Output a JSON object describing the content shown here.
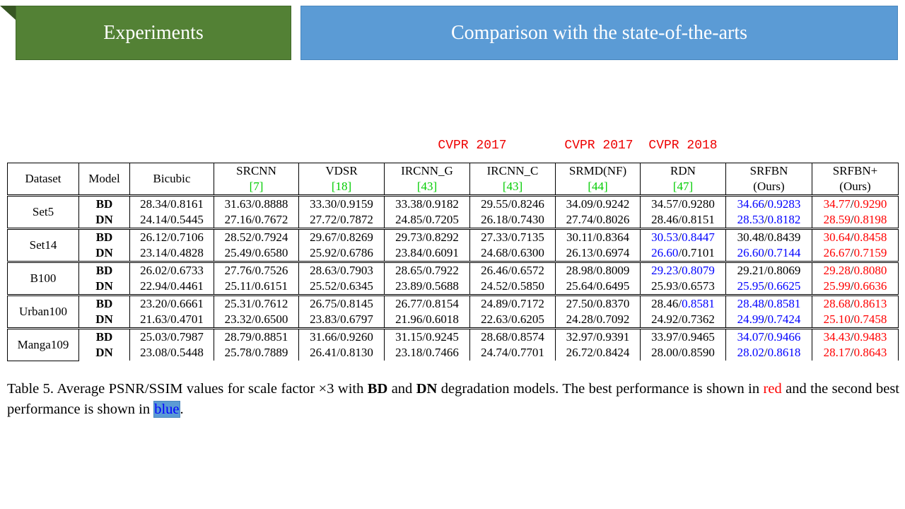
{
  "header": {
    "section": "Experiments",
    "title": "Comparison with the state-of-the-arts"
  },
  "annotations": [
    "CVPR 2017",
    "CVPR 2017",
    "CVPR 2018"
  ],
  "table": {
    "columns": [
      {
        "name": "Dataset"
      },
      {
        "name": "Model"
      },
      {
        "name": "Bicubic"
      },
      {
        "name": "SRCNN",
        "ref": "[7]"
      },
      {
        "name": "VDSR",
        "ref": "[18]"
      },
      {
        "name": "IRCNN_G",
        "ref": "[43]"
      },
      {
        "name": "IRCNN_C",
        "ref": "[43]"
      },
      {
        "name": "SRMD(NF)",
        "ref": "[44]"
      },
      {
        "name": "RDN",
        "ref": "[47]"
      },
      {
        "name": "SRFBN",
        "note": "(Ours)"
      },
      {
        "name": "SRFBN+",
        "note": "(Ours)"
      }
    ],
    "separator": "/",
    "groups": [
      {
        "dataset": "Set5",
        "rows": [
          {
            "model": "BD",
            "cells": [
              {
                "p": "28.34",
                "s": "0.8161"
              },
              {
                "p": "31.63",
                "s": "0.8888"
              },
              {
                "p": "33.30",
                "s": "0.9159"
              },
              {
                "p": "33.38",
                "s": "0.9182"
              },
              {
                "p": "29.55",
                "s": "0.8246"
              },
              {
                "p": "34.09",
                "s": "0.9242"
              },
              {
                "p": "34.57",
                "s": "0.9280"
              },
              {
                "p": "34.66",
                "s": "0.9283",
                "pc": "blue",
                "sc": "blue"
              },
              {
                "p": "34.77",
                "s": "0.9290",
                "pc": "red",
                "sc": "red"
              }
            ]
          },
          {
            "model": "DN",
            "cells": [
              {
                "p": "24.14",
                "s": "0.5445"
              },
              {
                "p": "27.16",
                "s": "0.7672"
              },
              {
                "p": "27.72",
                "s": "0.7872"
              },
              {
                "p": "24.85",
                "s": "0.7205"
              },
              {
                "p": "26.18",
                "s": "0.7430"
              },
              {
                "p": "27.74",
                "s": "0.8026"
              },
              {
                "p": "28.46",
                "s": "0.8151"
              },
              {
                "p": "28.53",
                "s": "0.8182",
                "pc": "blue",
                "sc": "blue"
              },
              {
                "p": "28.59",
                "s": "0.8198",
                "pc": "red",
                "sc": "red"
              }
            ]
          }
        ]
      },
      {
        "dataset": "Set14",
        "rows": [
          {
            "model": "BD",
            "cells": [
              {
                "p": "26.12",
                "s": "0.7106"
              },
              {
                "p": "28.52",
                "s": "0.7924"
              },
              {
                "p": "29.67",
                "s": "0.8269"
              },
              {
                "p": "29.73",
                "s": "0.8292"
              },
              {
                "p": "27.33",
                "s": "0.7135"
              },
              {
                "p": "30.11",
                "s": "0.8364"
              },
              {
                "p": "30.53",
                "s": "0.8447",
                "pc": "blue",
                "sc": "blue"
              },
              {
                "p": "30.48",
                "s": "0.8439"
              },
              {
                "p": "30.64",
                "s": "0.8458",
                "pc": "red",
                "sc": "red"
              }
            ]
          },
          {
            "model": "DN",
            "cells": [
              {
                "p": "23.14",
                "s": "0.4828"
              },
              {
                "p": "25.49",
                "s": "0.6580"
              },
              {
                "p": "25.92",
                "s": "0.6786"
              },
              {
                "p": "23.84",
                "s": "0.6091"
              },
              {
                "p": "24.68",
                "s": "0.6300"
              },
              {
                "p": "26.13",
                "s": "0.6974"
              },
              {
                "p": "26.60",
                "s": "0.7101",
                "pc": "blue"
              },
              {
                "p": "26.60",
                "s": "0.7144",
                "pc": "blue",
                "sc": "blue"
              },
              {
                "p": "26.67",
                "s": "0.7159",
                "pc": "red",
                "sc": "red"
              }
            ]
          }
        ]
      },
      {
        "dataset": "B100",
        "rows": [
          {
            "model": "BD",
            "cells": [
              {
                "p": "26.02",
                "s": "0.6733"
              },
              {
                "p": "27.76",
                "s": "0.7526"
              },
              {
                "p": "28.63",
                "s": "0.7903"
              },
              {
                "p": "28.65",
                "s": "0.7922"
              },
              {
                "p": "26.46",
                "s": "0.6572"
              },
              {
                "p": "28.98",
                "s": "0.8009"
              },
              {
                "p": "29.23",
                "s": "0.8079",
                "pc": "blue",
                "sc": "blue"
              },
              {
                "p": "29.21",
                "s": "0.8069"
              },
              {
                "p": "29.28",
                "s": "0.8080",
                "pc": "red",
                "sc": "red"
              }
            ]
          },
          {
            "model": "DN",
            "cells": [
              {
                "p": "22.94",
                "s": "0.4461"
              },
              {
                "p": "25.11",
                "s": "0.6151"
              },
              {
                "p": "25.52",
                "s": "0.6345"
              },
              {
                "p": "23.89",
                "s": "0.5688"
              },
              {
                "p": "24.52",
                "s": "0.5850"
              },
              {
                "p": "25.64",
                "s": "0.6495"
              },
              {
                "p": "25.93",
                "s": "0.6573"
              },
              {
                "p": "25.95",
                "s": "0.6625",
                "pc": "blue",
                "sc": "blue"
              },
              {
                "p": "25.99",
                "s": "0.6636",
                "pc": "red",
                "sc": "red"
              }
            ]
          }
        ]
      },
      {
        "dataset": "Urban100",
        "rows": [
          {
            "model": "BD",
            "cells": [
              {
                "p": "23.20",
                "s": "0.6661"
              },
              {
                "p": "25.31",
                "s": "0.7612"
              },
              {
                "p": "26.75",
                "s": "0.8145"
              },
              {
                "p": "26.77",
                "s": "0.8154"
              },
              {
                "p": "24.89",
                "s": "0.7172"
              },
              {
                "p": "27.50",
                "s": "0.8370"
              },
              {
                "p": "28.46",
                "s": "0.8581",
                "sc": "blue"
              },
              {
                "p": "28.48",
                "s": "0.8581",
                "pc": "blue",
                "sc": "blue"
              },
              {
                "p": "28.68",
                "s": "0.8613",
                "pc": "red",
                "sc": "red"
              }
            ]
          },
          {
            "model": "DN",
            "cells": [
              {
                "p": "21.63",
                "s": "0.4701"
              },
              {
                "p": "23.32",
                "s": "0.6500"
              },
              {
                "p": "23.83",
                "s": "0.6797"
              },
              {
                "p": "21.96",
                "s": "0.6018"
              },
              {
                "p": "22.63",
                "s": "0.6205"
              },
              {
                "p": "24.28",
                "s": "0.7092"
              },
              {
                "p": "24.92",
                "s": "0.7362"
              },
              {
                "p": "24.99",
                "s": "0.7424",
                "pc": "blue",
                "sc": "blue"
              },
              {
                "p": "25.10",
                "s": "0.7458",
                "pc": "red",
                "sc": "red"
              }
            ]
          }
        ]
      },
      {
        "dataset": "Manga109",
        "rows": [
          {
            "model": "BD",
            "cells": [
              {
                "p": "25.03",
                "s": "0.7987"
              },
              {
                "p": "28.79",
                "s": "0.8851"
              },
              {
                "p": "31.66",
                "s": "0.9260"
              },
              {
                "p": "31.15",
                "s": "0.9245"
              },
              {
                "p": "28.68",
                "s": "0.8574"
              },
              {
                "p": "32.97",
                "s": "0.9391"
              },
              {
                "p": "33.97",
                "s": "0.9465"
              },
              {
                "p": "34.07",
                "s": "0.9466",
                "pc": "blue",
                "sc": "blue"
              },
              {
                "p": "34.43",
                "s": "0.9483",
                "pc": "red",
                "sc": "red"
              }
            ]
          },
          {
            "model": "DN",
            "cells": [
              {
                "p": "23.08",
                "s": "0.5448"
              },
              {
                "p": "25.78",
                "s": "0.7889"
              },
              {
                "p": "26.41",
                "s": "0.8130"
              },
              {
                "p": "23.18",
                "s": "0.7466"
              },
              {
                "p": "24.74",
                "s": "0.7701"
              },
              {
                "p": "26.72",
                "s": "0.8424"
              },
              {
                "p": "28.00",
                "s": "0.8590"
              },
              {
                "p": "28.02",
                "s": "0.8618",
                "pc": "blue",
                "sc": "blue"
              },
              {
                "p": "28.17",
                "s": "0.8643",
                "pc": "red",
                "sc": "red"
              }
            ]
          }
        ]
      }
    ]
  },
  "caption": [
    {
      "text": "Table 5. Average PSNR/SSIM values for scale factor ×3 with "
    },
    {
      "text": "BD",
      "style": "bold"
    },
    {
      "text": " and "
    },
    {
      "text": "DN",
      "style": "bold"
    },
    {
      "text": " degradation models. The best performance is shown in "
    },
    {
      "text": "red",
      "style": "red"
    },
    {
      "text": " and the second best performance is shown in "
    },
    {
      "text": "blue",
      "style": "blue"
    },
    {
      "text": "."
    }
  ]
}
